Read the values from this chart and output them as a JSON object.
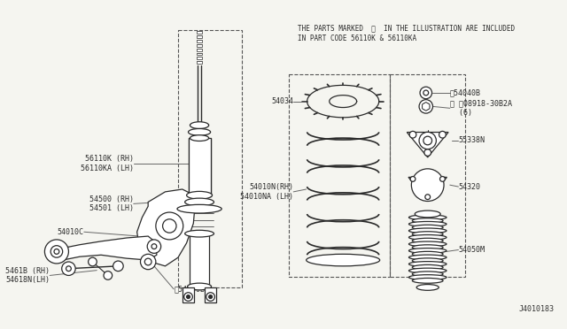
{
  "background_color": "#f5f5f0",
  "line_color": "#2a2a2a",
  "notice_text_line1": "THE PARTS MARKED  ※  IN THE ILLUSTRATION ARE INCLUDED",
  "notice_text_line2": "IN PART CODE 56110K & 56110KA",
  "diagram_id": "J4010183",
  "label_fontsize": 6.0,
  "dashed_color": "#555555"
}
